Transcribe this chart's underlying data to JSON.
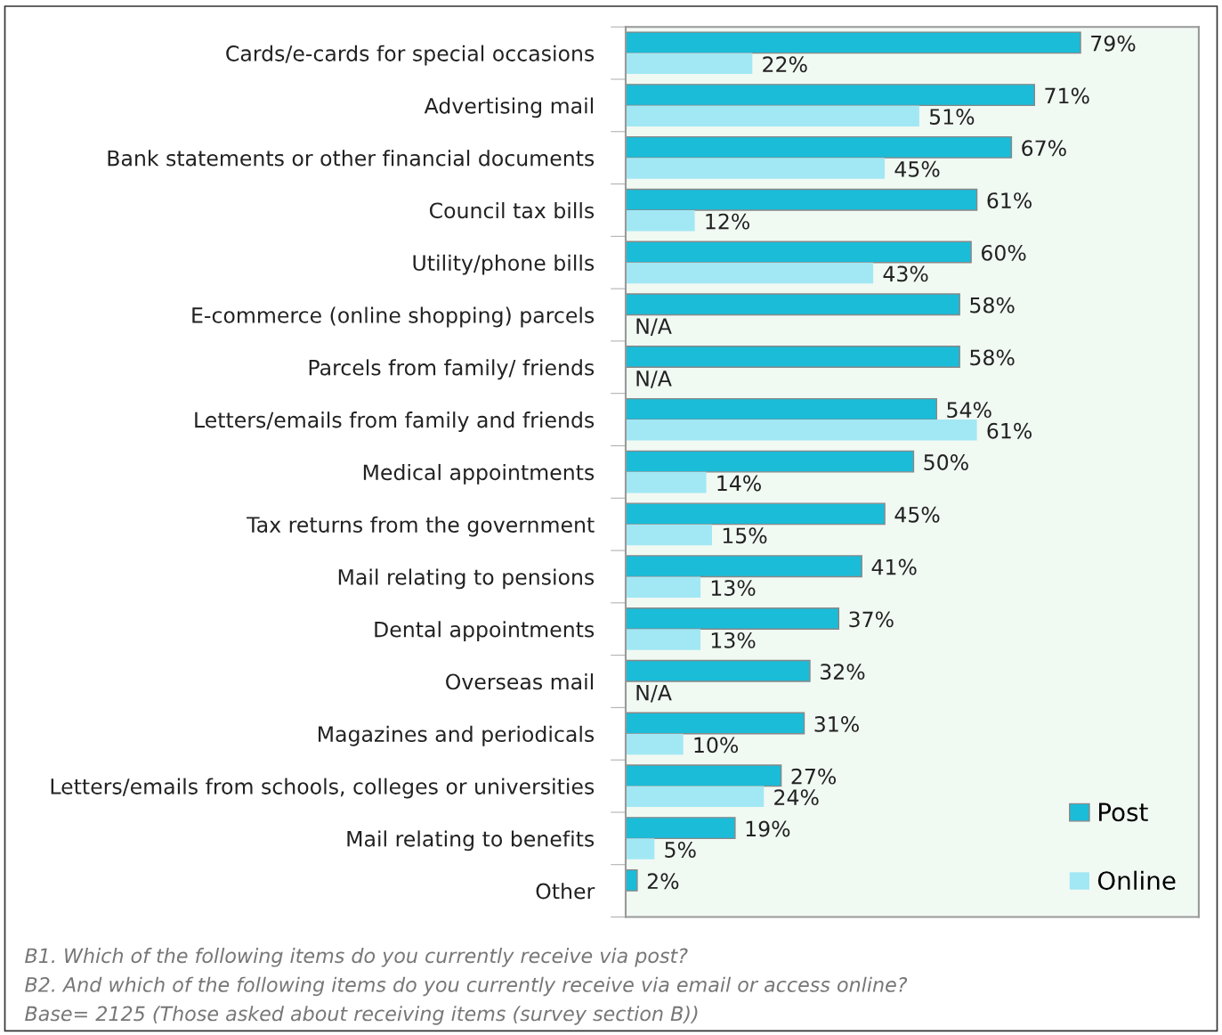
{
  "chart_data": {
    "type": "bar",
    "orientation": "horizontal",
    "categories": [
      "Cards/e-cards for special occasions",
      "Advertising mail",
      "Bank statements or other financial documents",
      "Council tax bills",
      "Utility/phone bills",
      "E-commerce (online shopping) parcels",
      "Parcels from family/ friends",
      "Letters/emails from family and friends",
      "Medical appointments",
      "Tax returns from the government",
      "Mail relating to pensions",
      "Dental appointments",
      "Overseas mail",
      "Magazines and periodicals",
      "Letters/emails from schools, colleges or universities",
      "Mail relating to benefits",
      "Other"
    ],
    "series": [
      {
        "name": "Post",
        "color": "#1abcd8",
        "values": [
          79,
          71,
          67,
          61,
          60,
          58,
          58,
          54,
          50,
          45,
          41,
          37,
          32,
          31,
          27,
          19,
          2
        ],
        "value_labels": [
          "79%",
          "71%",
          "67%",
          "61%",
          "60%",
          "58%",
          "58%",
          "54%",
          "50%",
          "45%",
          "41%",
          "37%",
          "32%",
          "31%",
          "27%",
          "19%",
          "2%"
        ]
      },
      {
        "name": "Online",
        "color": "#a2e8f4",
        "values": [
          22,
          51,
          45,
          12,
          43,
          null,
          null,
          61,
          14,
          15,
          13,
          13,
          null,
          10,
          24,
          5,
          null
        ],
        "value_labels": [
          "22%",
          "51%",
          "45%",
          "12%",
          "43%",
          "N/A",
          "N/A",
          "61%",
          "14%",
          "15%",
          "13%",
          "13%",
          "N/A",
          "10%",
          "24%",
          "5%",
          null
        ]
      }
    ],
    "legend": "bottom right",
    "grid": false,
    "tick_labels": "y",
    "annotations": [
      "B1. Which of the following items do you currently receive via post?",
      "B2. And which of the following items do you currently receive via email or access online?",
      "Base= 2125 (Those asked about receiving items (survey section B))"
    ]
  }
}
